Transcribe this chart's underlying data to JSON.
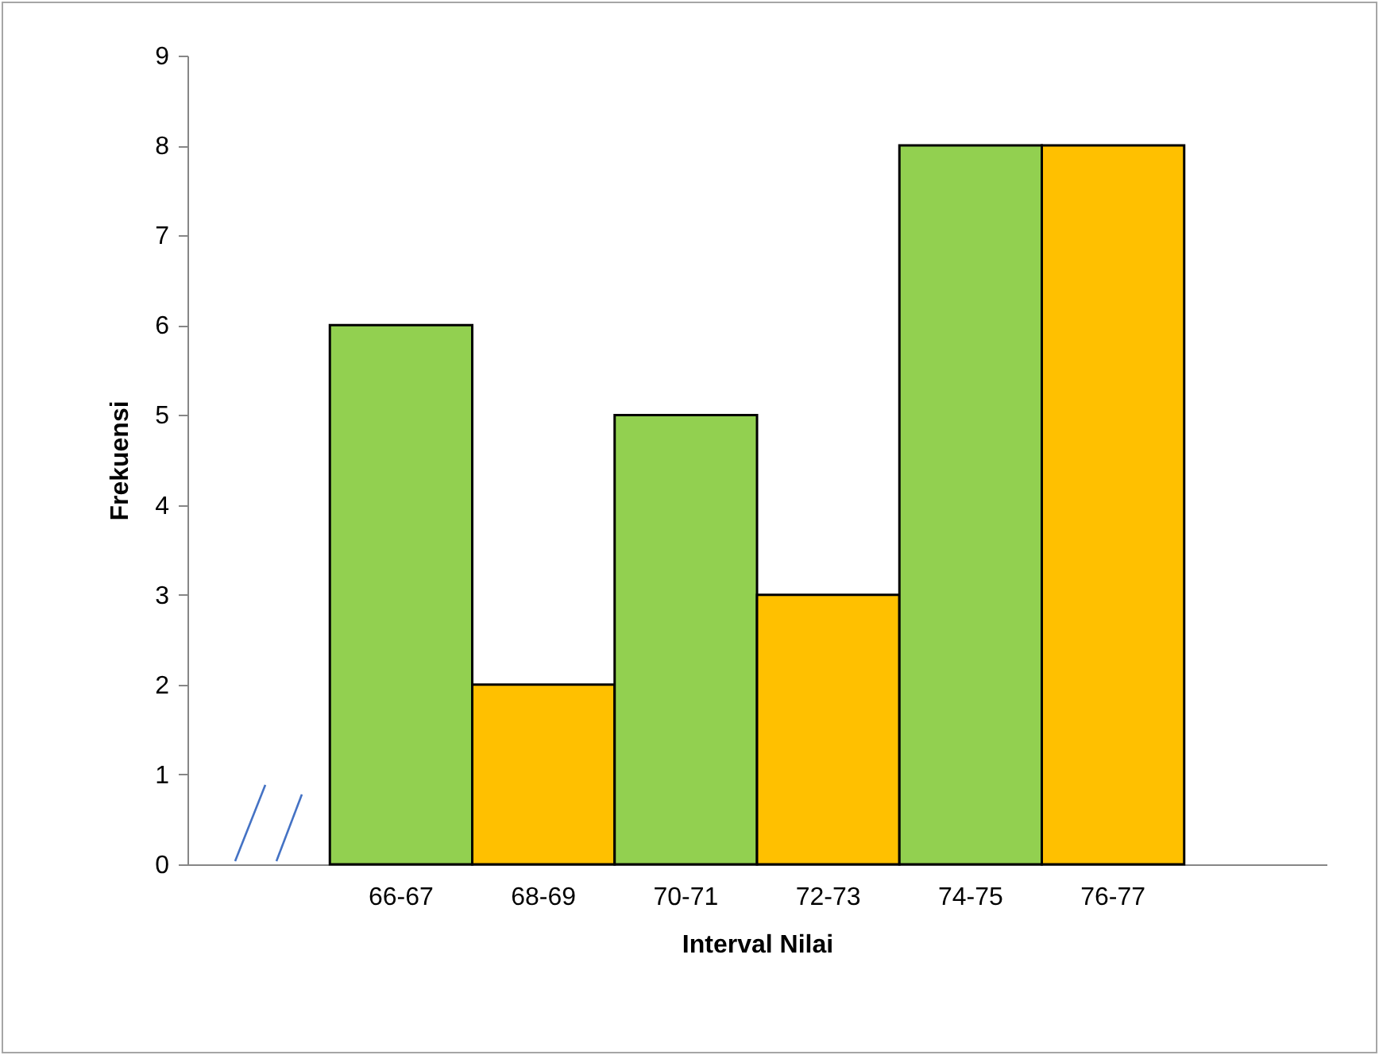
{
  "chart_data": {
    "type": "bar",
    "xlabel": "Interval  Nilai",
    "ylabel": "Frekuensi",
    "categories": [
      null,
      "66-67",
      "68-69",
      "70-71",
      "72-73",
      "74-75",
      "76-77",
      null
    ],
    "values": [
      null,
      6,
      2,
      5,
      3,
      8,
      8,
      null
    ],
    "colors": [
      null,
      "#92d050",
      "#ffc000",
      "#92d050",
      "#ffc000",
      "#92d050",
      "#ffc000",
      null
    ],
    "ylim": [
      0,
      9
    ],
    "yticks": [
      0,
      1,
      2,
      3,
      4,
      5,
      6,
      7,
      8,
      9
    ]
  }
}
